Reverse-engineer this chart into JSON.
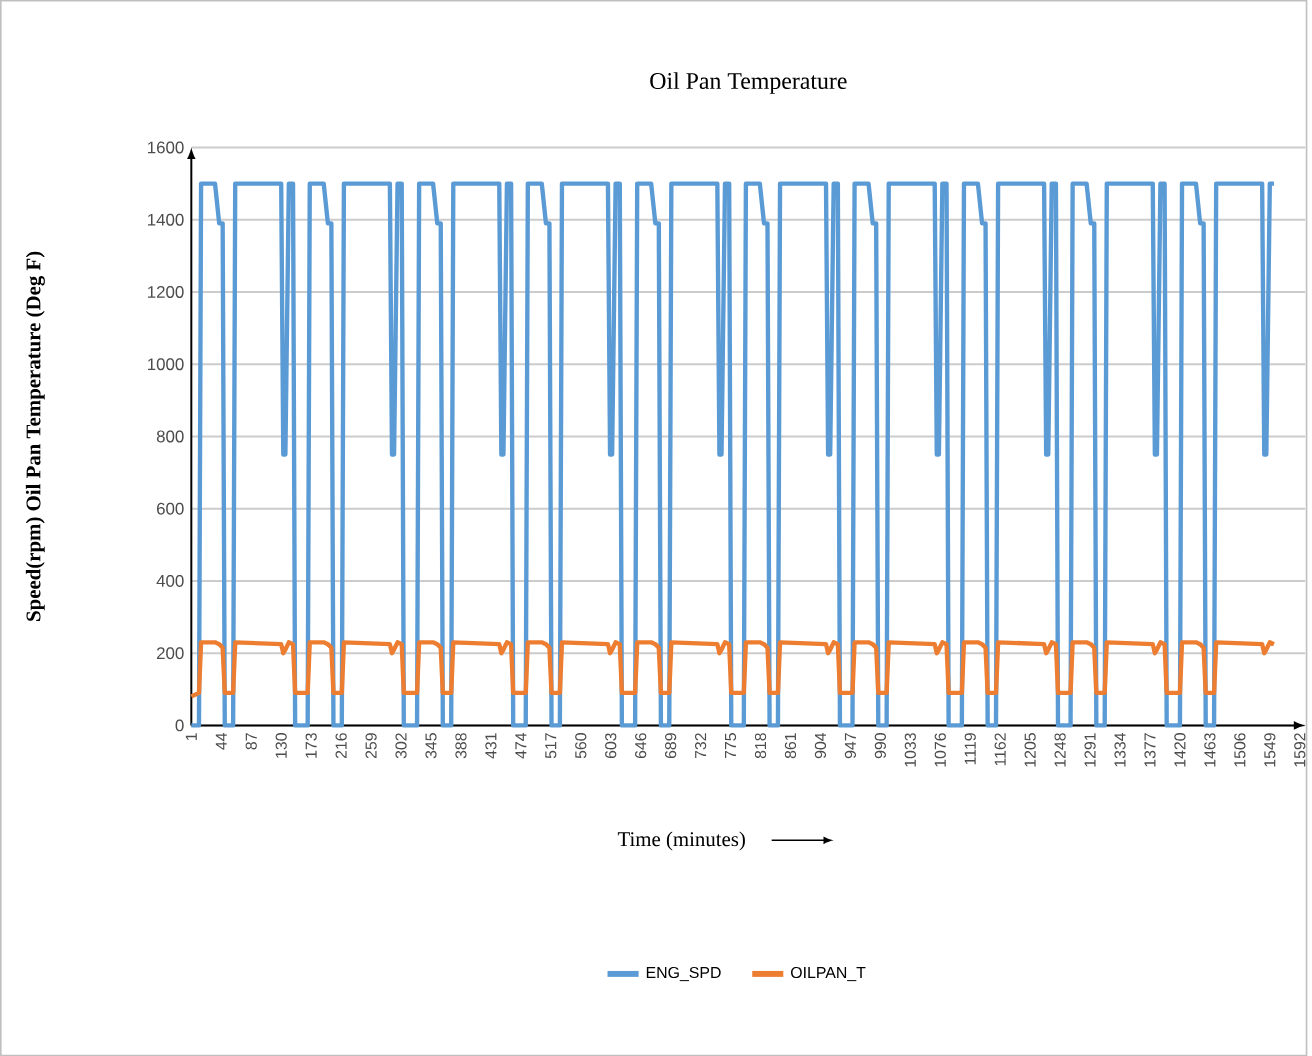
{
  "chart_data": {
    "type": "line",
    "title": "Oil Pan Temperature",
    "xlabel": "Time (minutes)",
    "ylabel": "Speed(rpm) Oil Pan Temperature (Deg F)",
    "x": [
      1,
      12,
      15,
      35,
      41,
      46,
      49,
      61,
      64,
      130,
      133,
      136,
      141,
      147,
      150,
      168,
      171,
      191,
      197,
      202,
      205,
      217,
      220,
      286,
      289,
      292,
      297,
      303,
      306,
      325,
      328,
      348,
      354,
      359,
      362,
      374,
      377,
      443,
      446,
      449,
      454,
      460,
      463,
      481,
      484,
      504,
      510,
      515,
      518,
      530,
      533,
      599,
      602,
      605,
      610,
      616,
      619,
      638,
      641,
      661,
      667,
      672,
      675,
      687,
      690,
      756,
      759,
      762,
      767,
      773,
      776,
      794,
      797,
      817,
      823,
      828,
      831,
      843,
      846,
      912,
      915,
      918,
      923,
      929,
      932,
      950,
      953,
      973,
      979,
      984,
      987,
      999,
      1002,
      1068,
      1071,
      1074,
      1079,
      1085,
      1088,
      1107,
      1110,
      1130,
      1136,
      1141,
      1144,
      1156,
      1159,
      1225,
      1228,
      1231,
      1236,
      1242,
      1245,
      1263,
      1266,
      1286,
      1292,
      1297,
      1300,
      1312,
      1315,
      1381,
      1384,
      1387,
      1392,
      1398,
      1401,
      1420,
      1423,
      1443,
      1449,
      1454,
      1457,
      1469,
      1472,
      1538,
      1541,
      1544,
      1549,
      1555
    ],
    "series": [
      {
        "name": "ENG_SPD",
        "color": "#5b9bd5",
        "values": [
          0,
          0,
          1500,
          1500,
          1390,
          1390,
          0,
          0,
          1500,
          1500,
          750,
          750,
          1500,
          1500,
          0,
          0,
          1500,
          1500,
          1390,
          1390,
          0,
          0,
          1500,
          1500,
          750,
          750,
          1500,
          1500,
          0,
          0,
          1500,
          1500,
          1390,
          1390,
          0,
          0,
          1500,
          1500,
          750,
          750,
          1500,
          1500,
          0,
          0,
          1500,
          1500,
          1390,
          1390,
          0,
          0,
          1500,
          1500,
          750,
          750,
          1500,
          1500,
          0,
          0,
          1500,
          1500,
          1390,
          1390,
          0,
          0,
          1500,
          1500,
          750,
          750,
          1500,
          1500,
          0,
          0,
          1500,
          1500,
          1390,
          1390,
          0,
          0,
          1500,
          1500,
          750,
          750,
          1500,
          1500,
          0,
          0,
          1500,
          1500,
          1390,
          1390,
          0,
          0,
          1500,
          1500,
          750,
          750,
          1500,
          1500,
          0,
          0,
          1500,
          1500,
          1390,
          1390,
          0,
          0,
          1500,
          1500,
          750,
          750,
          1500,
          1500,
          0,
          0,
          1500,
          1500,
          1390,
          1390,
          0,
          0,
          1500,
          1500,
          750,
          750,
          1500,
          1500,
          0,
          0,
          1500,
          1500,
          1390,
          1390,
          0,
          0,
          1500,
          1500,
          750,
          750,
          1500,
          1500
        ]
      },
      {
        "name": "OILPAN_T",
        "color": "#ed7d31",
        "values": [
          80,
          90,
          230,
          230,
          225,
          215,
          90,
          90,
          230,
          225,
          200,
          210,
          230,
          225,
          90,
          90,
          230,
          230,
          225,
          215,
          90,
          90,
          230,
          225,
          200,
          210,
          230,
          225,
          90,
          90,
          230,
          230,
          225,
          215,
          90,
          90,
          230,
          225,
          200,
          210,
          230,
          225,
          90,
          90,
          230,
          230,
          225,
          215,
          90,
          90,
          230,
          225,
          200,
          210,
          230,
          225,
          90,
          90,
          230,
          230,
          225,
          215,
          90,
          90,
          230,
          225,
          200,
          210,
          230,
          225,
          90,
          90,
          230,
          230,
          225,
          215,
          90,
          90,
          230,
          225,
          200,
          210,
          230,
          225,
          90,
          90,
          230,
          230,
          225,
          215,
          90,
          90,
          230,
          225,
          200,
          210,
          230,
          225,
          90,
          90,
          230,
          230,
          225,
          215,
          90,
          90,
          230,
          225,
          200,
          210,
          230,
          225,
          90,
          90,
          230,
          230,
          225,
          215,
          90,
          90,
          230,
          225,
          200,
          210,
          230,
          225,
          90,
          90,
          230,
          230,
          225,
          215,
          90,
          90,
          230,
          225,
          200,
          210,
          230,
          225
        ]
      }
    ],
    "xlim": [
      1,
      1600
    ],
    "ylim": [
      0,
      1600
    ],
    "xticks": [
      1,
      44,
      87,
      130,
      173,
      216,
      259,
      302,
      345,
      388,
      431,
      474,
      517,
      560,
      603,
      646,
      689,
      732,
      775,
      818,
      861,
      904,
      947,
      990,
      1033,
      1076,
      1119,
      1162,
      1205,
      1248,
      1291,
      1334,
      1377,
      1420,
      1463,
      1506,
      1549,
      1592
    ],
    "yticks": [
      0,
      200,
      400,
      600,
      800,
      1000,
      1200,
      1400,
      1600
    ],
    "grid": "y",
    "legend": "bottom"
  }
}
